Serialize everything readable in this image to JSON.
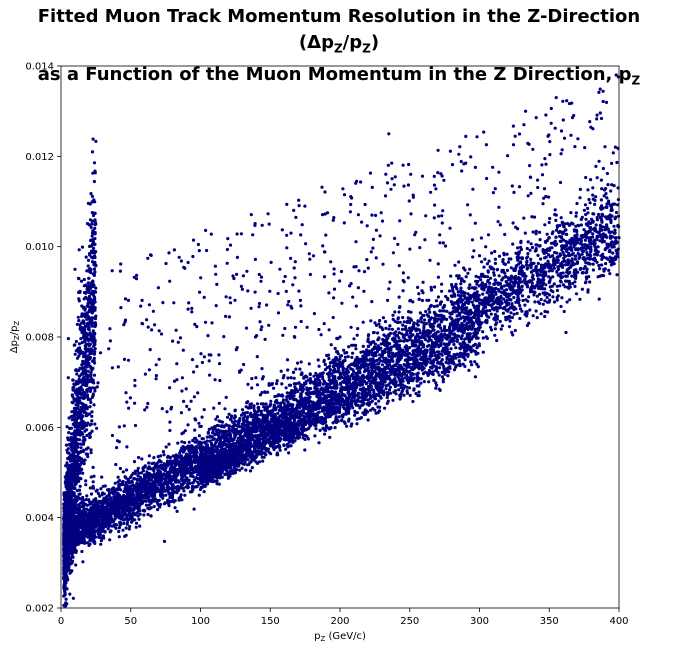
{
  "chart_data": {
    "type": "scatter",
    "title_line1_prefix": "Fitted Muon Track Momentum Resolution in the Z-Direction (Δp",
    "title_line1_sub1": "Z",
    "title_line1_mid": "/p",
    "title_line1_sub2": "Z",
    "title_line1_suffix": ")",
    "title_line2_prefix": "as a Function of the Muon Momentum in the Z Direction, p",
    "title_line2_sub": "Z",
    "xlabel_main": "p",
    "xlabel_sub": "Z",
    "xlabel_unit": " (GeV/c)",
    "ylabel_text": "Δp_Z/p_Z",
    "xlim": [
      0,
      400
    ],
    "ylim": [
      0.002,
      0.014
    ],
    "xticks": [
      0,
      50,
      100,
      150,
      200,
      250,
      300,
      350,
      400
    ],
    "yticks": [
      0.002,
      0.004,
      0.006,
      0.008,
      0.01,
      0.012,
      0.014
    ],
    "xtick_labels": [
      "0",
      "50",
      "100",
      "150",
      "200",
      "250",
      "300",
      "350",
      "400"
    ],
    "ytick_labels": [
      "0.002",
      "0.004",
      "0.006",
      "0.008",
      "0.010",
      "0.012",
      "0.014"
    ],
    "marker_color": "#000080",
    "grid": false,
    "bands": [
      {
        "x_start": 2,
        "x_end": 400,
        "y_at_start": 0.0036,
        "y_at_end": 0.0104,
        "spread": 0.0004,
        "count": 6000
      },
      {
        "x_start": 100,
        "x_end": 300,
        "y_at_start": 0.005,
        "y_at_end": 0.0079,
        "spread": 0.00025,
        "count": 1600
      },
      {
        "x_start": 2,
        "x_end": 25,
        "y_at_start": 0.0032,
        "y_at_end": 0.0093,
        "spread": 0.0012,
        "count": 1500
      }
    ],
    "outlier_region": {
      "x_range": [
        5,
        400
      ],
      "y_range": [
        0.0045,
        0.0138
      ],
      "count": 700
    },
    "sample_points": [
      {
        "x": 5,
        "y": 0.0031
      },
      {
        "x": 10,
        "y": 0.0095
      },
      {
        "x": 20,
        "y": 0.0093
      },
      {
        "x": 50,
        "y": 0.0045
      },
      {
        "x": 100,
        "y": 0.0055
      },
      {
        "x": 150,
        "y": 0.0065
      },
      {
        "x": 200,
        "y": 0.008
      },
      {
        "x": 250,
        "y": 0.0088
      },
      {
        "x": 300,
        "y": 0.0098
      },
      {
        "x": 350,
        "y": 0.0102
      },
      {
        "x": 398,
        "y": 0.0138
      },
      {
        "x": 235,
        "y": 0.0125
      },
      {
        "x": 355,
        "y": 0.0133
      },
      {
        "x": 362,
        "y": 0.0081
      }
    ]
  }
}
